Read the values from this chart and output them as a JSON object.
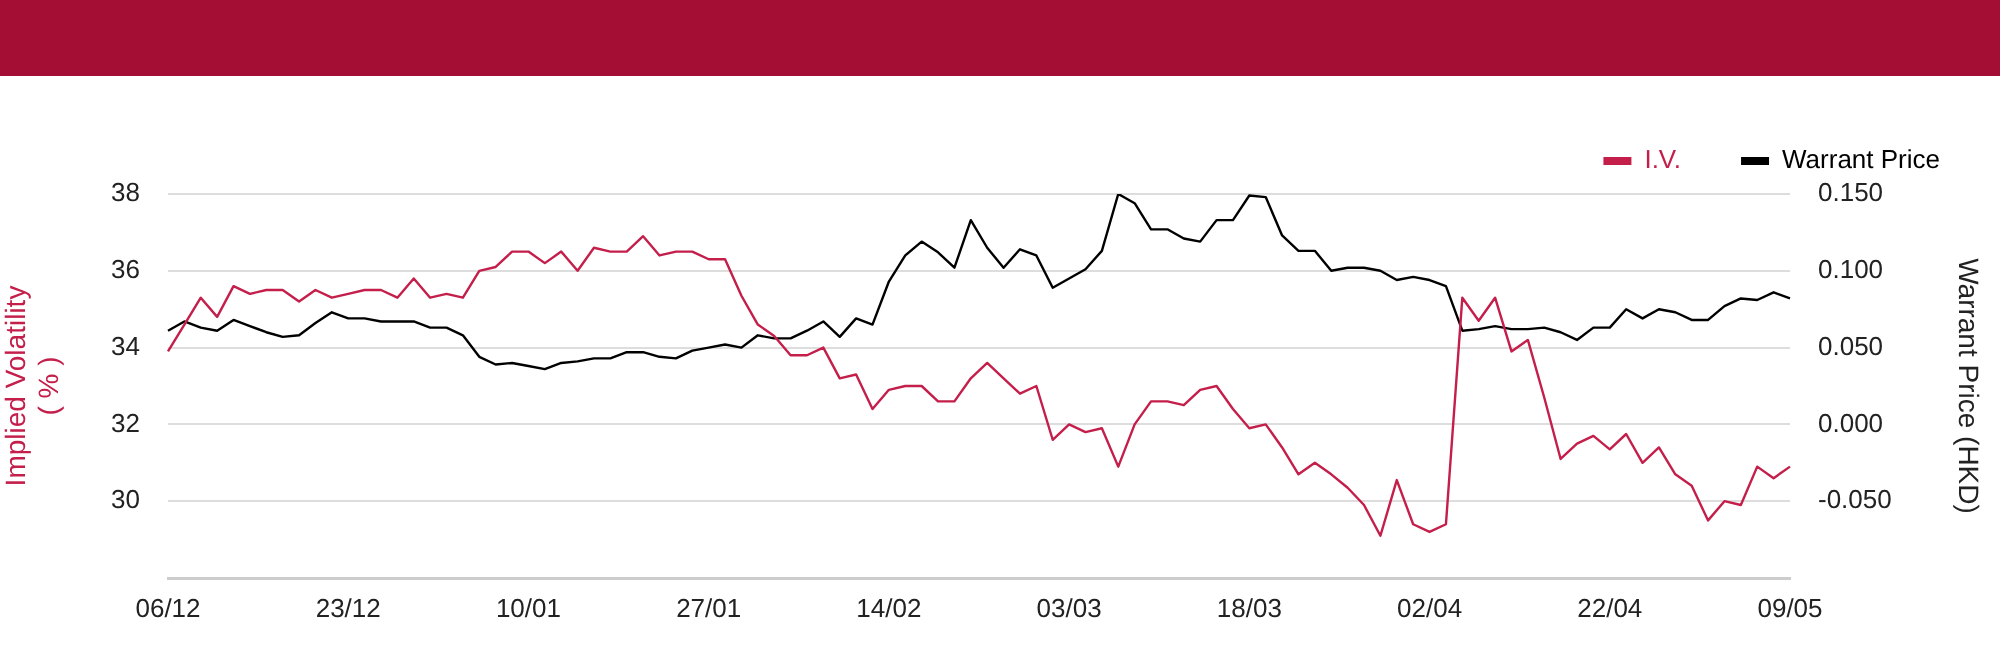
{
  "chart_data": {
    "type": "line",
    "categories": [
      "06/12",
      null,
      null,
      null,
      null,
      null,
      null,
      null,
      null,
      null,
      null,
      "23/12",
      null,
      null,
      null,
      null,
      null,
      null,
      null,
      null,
      null,
      null,
      "10/01",
      null,
      null,
      null,
      null,
      null,
      null,
      null,
      null,
      null,
      null,
      "27/01",
      null,
      null,
      null,
      null,
      null,
      null,
      null,
      null,
      null,
      null,
      "14/02",
      null,
      null,
      null,
      null,
      null,
      null,
      null,
      null,
      null,
      null,
      "03/03",
      null,
      null,
      null,
      null,
      null,
      null,
      null,
      null,
      null,
      null,
      "18/03",
      null,
      null,
      null,
      null,
      null,
      null,
      null,
      null,
      null,
      null,
      "02/04",
      null,
      null,
      null,
      null,
      null,
      null,
      null,
      null,
      null,
      null,
      "22/04",
      null,
      null,
      null,
      null,
      null,
      null,
      null,
      null,
      null,
      null,
      "09/05"
    ],
    "series": [
      {
        "name": "I.V.",
        "color": "#c41e4a",
        "axis": "y",
        "values": [
          33.9,
          34.6,
          35.3,
          34.8,
          35.6,
          35.4,
          35.5,
          35.5,
          35.2,
          35.5,
          35.3,
          35.4,
          35.5,
          35.5,
          35.3,
          35.8,
          35.3,
          35.4,
          35.3,
          36.0,
          36.1,
          36.5,
          36.5,
          36.2,
          36.5,
          36.0,
          36.6,
          36.5,
          36.5,
          36.9,
          36.4,
          36.5,
          36.5,
          36.3,
          36.3,
          35.35,
          34.6,
          34.3,
          33.8,
          33.8,
          34.0,
          33.2,
          33.3,
          32.4,
          32.9,
          33.0,
          33.0,
          32.6,
          32.6,
          33.2,
          33.6,
          33.2,
          32.8,
          33.0,
          31.6,
          32.0,
          31.8,
          31.9,
          30.9,
          32.0,
          32.6,
          32.6,
          32.5,
          32.9,
          33.0,
          32.4,
          31.9,
          32.0,
          31.4,
          30.7,
          31.0,
          30.7,
          30.35,
          29.9,
          29.1,
          30.55,
          29.4,
          29.2,
          29.4,
          35.3,
          34.7,
          35.3,
          33.9,
          34.2,
          32.7,
          31.1,
          31.5,
          31.7,
          31.35,
          31.75,
          31.0,
          31.4,
          30.7,
          30.4,
          29.5,
          30.0,
          29.9,
          30.9,
          30.6,
          30.9
        ]
      },
      {
        "name": "Warrant Price",
        "color": "#000000",
        "axis": "y2",
        "values": [
          0.061,
          0.067,
          0.063,
          0.061,
          0.068,
          0.064,
          0.06,
          0.057,
          0.058,
          0.066,
          0.073,
          0.069,
          0.069,
          0.067,
          0.067,
          0.067,
          0.063,
          0.063,
          0.058,
          0.044,
          0.039,
          0.04,
          0.038,
          0.036,
          0.04,
          0.041,
          0.043,
          0.043,
          0.047,
          0.047,
          0.044,
          0.043,
          0.048,
          0.05,
          0.052,
          0.05,
          0.058,
          0.056,
          0.056,
          0.061,
          0.067,
          0.057,
          0.069,
          0.065,
          0.093,
          0.11,
          0.119,
          0.112,
          0.102,
          0.133,
          0.115,
          0.102,
          0.114,
          0.11,
          0.089,
          0.095,
          0.101,
          0.113,
          0.15,
          0.144,
          0.127,
          0.127,
          0.121,
          0.119,
          0.133,
          0.133,
          0.149,
          0.148,
          0.123,
          0.113,
          0.113,
          0.1,
          0.102,
          0.102,
          0.1,
          0.094,
          0.096,
          0.094,
          0.09,
          0.061,
          0.062,
          0.064,
          0.062,
          0.062,
          0.063,
          0.06,
          0.055,
          0.063,
          0.063,
          0.075,
          0.069,
          0.075,
          0.073,
          0.068,
          0.068,
          0.077,
          0.082,
          0.081,
          0.086,
          0.082
        ]
      }
    ],
    "ylabel": "Implied Volatility\n( % )",
    "y2label": "Warrant Price (HKD)",
    "ylim": [
      28,
      38
    ],
    "yticks": [
      30,
      32,
      34,
      36,
      38
    ],
    "y2lim": [
      -0.1,
      0.15
    ],
    "y2ticks": [
      {
        "value": -0.05,
        "label": "-0.050"
      },
      {
        "value": 0,
        "label": "0.000"
      },
      {
        "value": 0.05,
        "label": "0.050"
      },
      {
        "value": 0.1,
        "label": "0.100"
      },
      {
        "value": 0.15,
        "label": "0.150"
      }
    ],
    "grid": "y",
    "legend": "top right",
    "marker": "none",
    "line_style": "solid"
  }
}
